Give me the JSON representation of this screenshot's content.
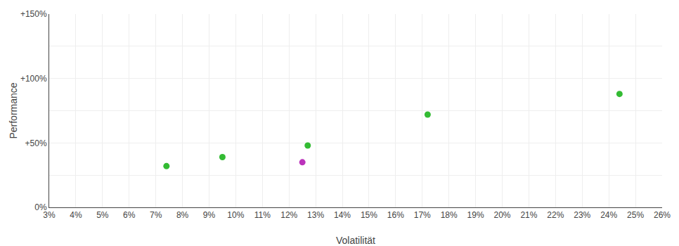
{
  "chart_data": {
    "type": "scatter",
    "xlabel": "Volatilität",
    "ylabel": "Performance",
    "xlim": [
      0.03,
      0.26
    ],
    "ylim": [
      0.0,
      1.5
    ],
    "xticks": [
      {
        "value": 0.03,
        "label": "3%"
      },
      {
        "value": 0.04,
        "label": "4%"
      },
      {
        "value": 0.05,
        "label": "5%"
      },
      {
        "value": 0.06,
        "label": "6%"
      },
      {
        "value": 0.07,
        "label": "7%"
      },
      {
        "value": 0.08,
        "label": "8%"
      },
      {
        "value": 0.09,
        "label": "9%"
      },
      {
        "value": 0.1,
        "label": "10%"
      },
      {
        "value": 0.11,
        "label": "11%"
      },
      {
        "value": 0.12,
        "label": "12%"
      },
      {
        "value": 0.13,
        "label": "13%"
      },
      {
        "value": 0.14,
        "label": "14%"
      },
      {
        "value": 0.15,
        "label": "15%"
      },
      {
        "value": 0.16,
        "label": "16%"
      },
      {
        "value": 0.17,
        "label": "17%"
      },
      {
        "value": 0.18,
        "label": "18%"
      },
      {
        "value": 0.19,
        "label": "19%"
      },
      {
        "value": 0.2,
        "label": "20%"
      },
      {
        "value": 0.21,
        "label": "21%"
      },
      {
        "value": 0.22,
        "label": "22%"
      },
      {
        "value": 0.23,
        "label": "23%"
      },
      {
        "value": 0.24,
        "label": "24%"
      },
      {
        "value": 0.25,
        "label": "25%"
      },
      {
        "value": 0.26,
        "label": "26%"
      }
    ],
    "yticks": [
      {
        "value": 0.0,
        "label": "0%"
      },
      {
        "value": 0.25,
        "label": null
      },
      {
        "value": 0.5,
        "label": "+50%"
      },
      {
        "value": 0.75,
        "label": null
      },
      {
        "value": 1.0,
        "label": "+100%"
      },
      {
        "value": 1.25,
        "label": null
      },
      {
        "value": 1.5,
        "label": "+150%"
      }
    ],
    "grid": true,
    "marker": "circle",
    "series": [
      {
        "color": "#33bb33",
        "x": [
          0.074,
          0.095,
          0.127,
          0.172,
          0.244
        ],
        "values": [
          0.32,
          0.39,
          0.48,
          0.72,
          0.88
        ]
      },
      {
        "color": "#bb33bb",
        "x": [
          0.125
        ],
        "values": [
          0.35
        ]
      }
    ]
  }
}
